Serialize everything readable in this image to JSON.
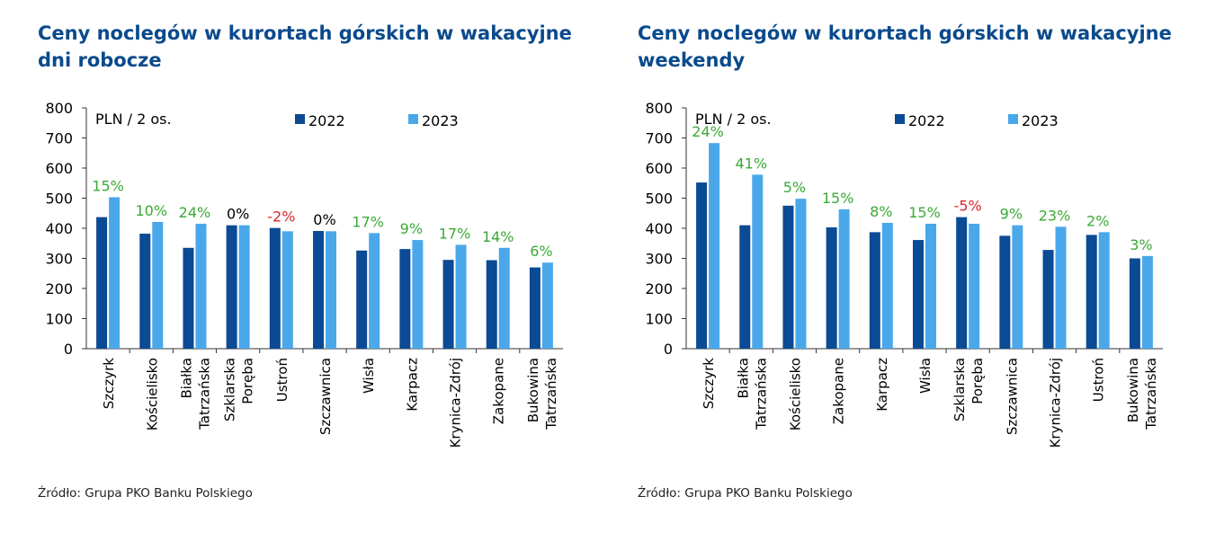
{
  "colors": {
    "title": "#0a4a8c",
    "series_2022": "#0b4a94",
    "series_2023": "#4aa8ea",
    "positive": "#3aaa35",
    "negative": "#d8262e",
    "neutral": "#000000",
    "axis": "#333333"
  },
  "source_text": "Źródło: Grupa PKO Banku Polskiego",
  "chart_data": [
    {
      "type": "bar",
      "title": "Ceny noclegów w kurortach górskich w wakacyjne dni robocze",
      "ylabel": "PLN / 2 os.",
      "xlabel": "",
      "ylim": [
        0,
        800
      ],
      "yticks": [
        "0",
        "100",
        "200",
        "300",
        "400",
        "500",
        "600",
        "700",
        "800"
      ],
      "legend_position": "top",
      "categories": [
        "Szczyrk",
        "Kościelisko",
        "Białka Tatrzańska",
        "Szklarska Poręba",
        "Ustroń",
        "Szczawnica",
        "Wisła",
        "Karpacz",
        "Krynica-Zdrój",
        "Zakopane",
        "Bukowina Tatrzańska"
      ],
      "category_lines": [
        [
          "Szczyrk"
        ],
        [
          "Kościelisko"
        ],
        [
          "Białka",
          "Tatrzańska"
        ],
        [
          "Szklarska",
          "Poręba"
        ],
        [
          "Ustroń"
        ],
        [
          "Szczawnica"
        ],
        [
          "Wisła"
        ],
        [
          "Karpacz"
        ],
        [
          "Krynica-Zdrój"
        ],
        [
          "Zakopane"
        ],
        [
          "Bukowina",
          "Tatrzańska"
        ]
      ],
      "series": [
        {
          "name": "2022",
          "values": [
            437,
            382,
            335,
            410,
            401,
            391,
            326,
            331,
            295,
            294,
            270
          ]
        },
        {
          "name": "2023",
          "values": [
            503,
            421,
            415,
            410,
            390,
            390,
            384,
            361,
            345,
            335,
            286
          ]
        }
      ],
      "labels": [
        "15%",
        "10%",
        "24%",
        "0%",
        "-2%",
        "0%",
        "17%",
        "9%",
        "17%",
        "14%",
        "6%"
      ]
    },
    {
      "type": "bar",
      "title": "Ceny noclegów w kurortach górskich w wakacyjne weekendy",
      "ylabel": "PLN / 2 os.",
      "xlabel": "",
      "ylim": [
        0,
        800
      ],
      "yticks": [
        "0",
        "100",
        "200",
        "300",
        "400",
        "500",
        "600",
        "700",
        "800"
      ],
      "legend_position": "top",
      "categories": [
        "Szczyrk",
        "Białka Tatrzańska",
        "Kościelisko",
        "Zakopane",
        "Karpacz",
        "Wisła",
        "Szklarska Poręba",
        "Szczawnica",
        "Krynica-Zdrój",
        "Ustroń",
        "Bukowina Tatrzańska"
      ],
      "category_lines": [
        [
          "Szczyrk"
        ],
        [
          "Białka",
          "Tatrzańska"
        ],
        [
          "Kościelisko"
        ],
        [
          "Zakopane"
        ],
        [
          "Karpacz"
        ],
        [
          "Wisła"
        ],
        [
          "Szklarska",
          "Poręba"
        ],
        [
          "Szczawnica"
        ],
        [
          "Krynica-Zdrój"
        ],
        [
          "Ustroń"
        ],
        [
          "Bukowina",
          "Tatrzańska"
        ]
      ],
      "series": [
        {
          "name": "2022",
          "values": [
            552,
            410,
            475,
            403,
            387,
            361,
            437,
            375,
            328,
            378,
            300
          ]
        },
        {
          "name": "2023",
          "values": [
            683,
            578,
            498,
            463,
            418,
            415,
            415,
            410,
            405,
            387,
            308
          ]
        }
      ],
      "labels": [
        "24%",
        "41%",
        "5%",
        "15%",
        "8%",
        "15%",
        "-5%",
        "9%",
        "23%",
        "2%",
        "3%"
      ]
    }
  ]
}
